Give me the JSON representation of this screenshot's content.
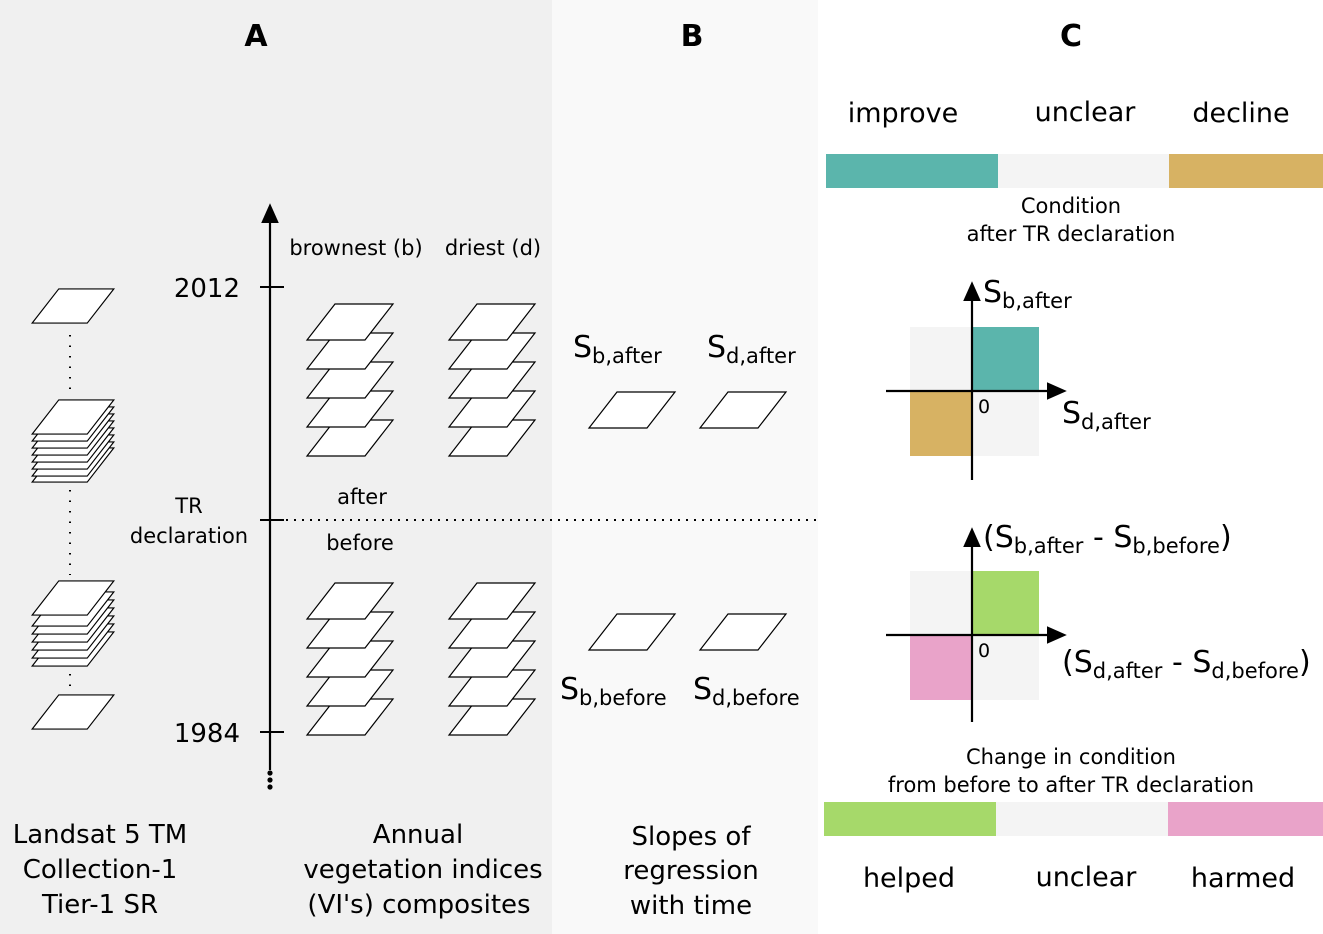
{
  "panels": {
    "a": {
      "letter": "A",
      "source_caption": [
        "Landsat 5 TM",
        "Collection-1",
        "Tier-1 SR"
      ],
      "year_top": "2012",
      "year_bottom": "1984",
      "tr_label": [
        "TR",
        "declaration"
      ],
      "after_label": "after",
      "before_label": "before",
      "stack_brownest": "brownest (b)",
      "stack_driest": "driest (d)",
      "composites_caption": [
        "Annual",
        "vegetation indices",
        "(VI's) composites"
      ]
    },
    "b": {
      "letter": "B",
      "caption": [
        "Slopes of",
        "regression",
        "with time"
      ],
      "s_b_after": {
        "main": "S",
        "sub": "b,after"
      },
      "s_d_after": {
        "main": "S",
        "sub": "d,after"
      },
      "s_b_before": {
        "main": "S",
        "sub": "b,before"
      },
      "s_d_before": {
        "main": "S",
        "sub": "d,before"
      }
    },
    "c": {
      "letter": "C",
      "condition": {
        "labels": [
          "improve",
          "unclear",
          "decline"
        ],
        "colors": [
          "#5bb5ac",
          "#f4f4f4",
          "#d7b263"
        ],
        "caption": [
          "Condition",
          "after TR declaration"
        ]
      },
      "quad1": {
        "y_axis": {
          "main": "S",
          "sub": "b,after"
        },
        "x_axis": {
          "main": "S",
          "sub": "d,after"
        },
        "origin": "0",
        "colors": {
          "top_right": "#5bb5ac",
          "bottom_left": "#d7b263",
          "neutral": "#f4f4f4"
        }
      },
      "quad2": {
        "y_axis": {
          "open": "(S",
          "sub1": "b,after",
          "mid": " - S",
          "sub2": "b,before",
          "close": ")"
        },
        "x_axis": {
          "open": "(S",
          "sub1": "d,after",
          "mid": " - S",
          "sub2": "d,before",
          "close": ")"
        },
        "origin": "0",
        "colors": {
          "top_right": "#a6d96a",
          "bottom_left": "#e9a3c9",
          "neutral": "#f4f4f4"
        }
      },
      "change": {
        "caption": [
          "Change in condition",
          "from before to after TR declaration"
        ],
        "labels": [
          "helped",
          "unclear",
          "harmed"
        ],
        "colors": [
          "#a6d96a",
          "#f4f4f4",
          "#e9a3c9"
        ]
      }
    }
  },
  "background_colors": {
    "panel_a": "#f0f0f0",
    "panel_b": "#f9f9f9",
    "panel_c": "#ffffff"
  }
}
